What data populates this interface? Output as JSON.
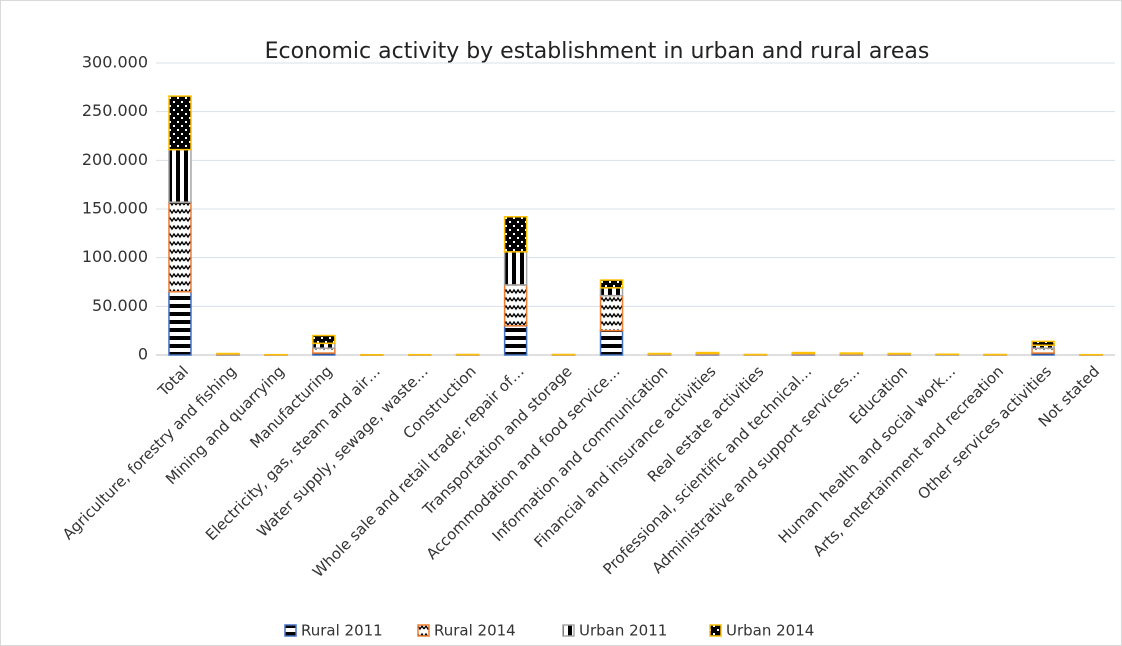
{
  "chart_data": {
    "type": "stacked_bar",
    "title": "Economic activity by establishment in urban and rural areas",
    "categories": [
      "Total",
      "Agriculture, forestry and fishing",
      "Mining and quarrying",
      "Manufacturing",
      "Electricity, gas, steam and air…",
      "Water supply, sewage, waste…",
      "Construction",
      "Whole sale and retail trade; repair of…",
      "Transportation and storage",
      "Accommodation and food service…",
      "Information and communication",
      "Financial and insurance activities",
      "Real estate activities",
      "Professional, scientific and technical…",
      "Administrative and support services…",
      "Education",
      "Human health and social work…",
      "Arts, entertainment and recreation",
      "Other services activities",
      "Not stated"
    ],
    "series": [
      {
        "name": "Rural 2011",
        "color": "#4472c4",
        "pattern": "horizontal",
        "values": [
          65000,
          400,
          100,
          2000,
          50,
          100,
          100,
          30000,
          100,
          25000,
          300,
          500,
          100,
          500,
          400,
          400,
          200,
          100,
          2000,
          100
        ]
      },
      {
        "name": "Rural 2014",
        "color": "#ed7d31",
        "pattern": "zigzag",
        "values": [
          92000,
          500,
          100,
          5000,
          50,
          100,
          150,
          42000,
          150,
          36000,
          400,
          700,
          150,
          700,
          600,
          500,
          200,
          150,
          5000,
          100
        ]
      },
      {
        "name": "Urban 2011",
        "color": "#a5a5a5",
        "pattern": "vertical",
        "values": [
          54000,
          300,
          50,
          5000,
          50,
          50,
          100,
          34000,
          100,
          8000,
          400,
          600,
          100,
          600,
          500,
          300,
          200,
          100,
          3000,
          50
        ]
      },
      {
        "name": "Urban 2014",
        "color": "#ffc000",
        "pattern": "checker",
        "values": [
          55000,
          300,
          50,
          8000,
          50,
          50,
          150,
          36000,
          150,
          8000,
          400,
          700,
          150,
          700,
          500,
          300,
          200,
          150,
          4000,
          50
        ]
      }
    ],
    "ylim": [
      0,
      300000
    ],
    "yticks": [
      0,
      {
        "value": 50000,
        "label": "50.000"
      },
      {
        "value": 100000,
        "label": "100.000"
      },
      {
        "value": 150000,
        "label": "150.000"
      },
      {
        "value": 200000,
        "label": "200.000"
      },
      {
        "value": 250000,
        "label": "250.000"
      },
      {
        "value": 300000,
        "label": "300.000"
      }
    ],
    "grid": true,
    "legend": "bottom"
  }
}
